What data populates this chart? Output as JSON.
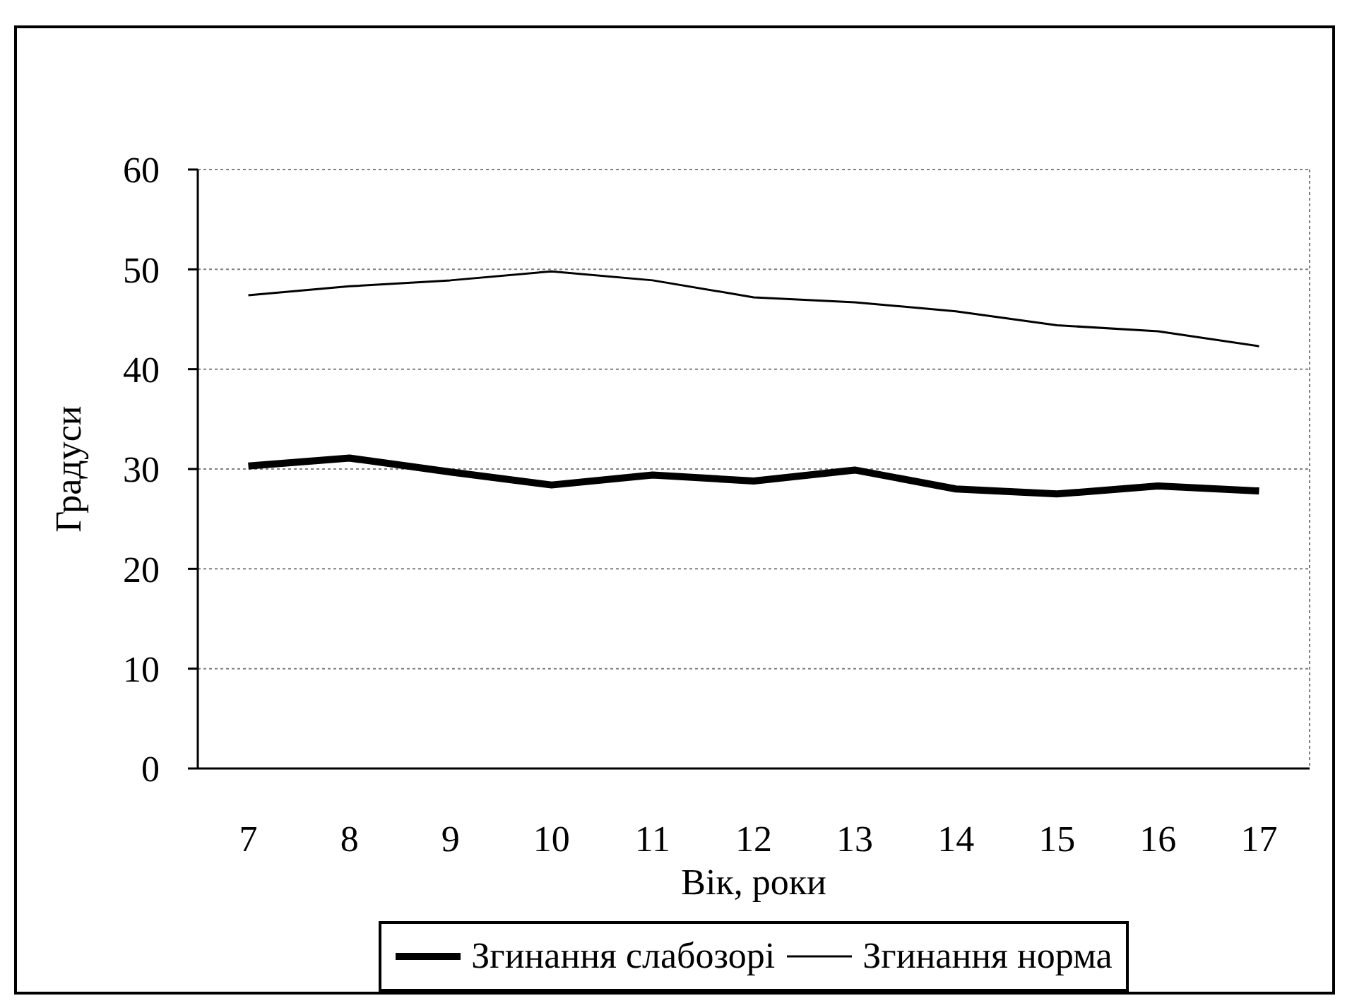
{
  "chart_data": {
    "type": "line",
    "xlabel": "Вік, роки",
    "ylabel": "Градуси",
    "categories": [
      "7",
      "8",
      "9",
      "10",
      "11",
      "12",
      "13",
      "14",
      "15",
      "16",
      "17"
    ],
    "series": [
      {
        "name": "Згинання слабозорі",
        "color": "#000000",
        "values": [
          30.3,
          31.1,
          29.7,
          28.4,
          29.4,
          28.8,
          29.9,
          28.0,
          27.5,
          28.3,
          27.8
        ]
      },
      {
        "name": "Згинання норма",
        "color": "#000000",
        "values": [
          47.4,
          48.3,
          48.9,
          49.8,
          48.9,
          47.2,
          46.7,
          45.8,
          44.4,
          43.8,
          42.3
        ]
      }
    ],
    "ylim": [
      0,
      60
    ],
    "yticks": [
      0,
      10,
      20,
      30,
      40,
      50,
      60
    ],
    "grid": true,
    "legend": "bottom",
    "line_style": "solid"
  }
}
